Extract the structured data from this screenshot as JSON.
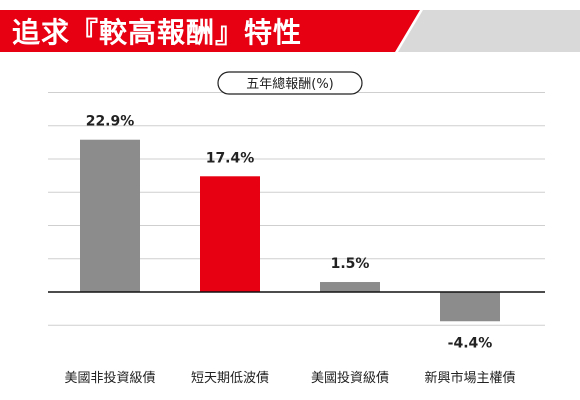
{
  "header": {
    "title": "追求『較高報酬』特性",
    "accent_color": "#e60012"
  },
  "chart_data": {
    "type": "bar",
    "title": "追求『較高報酬』特性",
    "subtitle": "五年總報酬(%)",
    "categories": [
      "美國非投資級債",
      "短天期低波債",
      "美國投資級債",
      "新興市場主權債"
    ],
    "values": [
      22.9,
      17.4,
      1.5,
      -4.4
    ],
    "value_labels": [
      "22.9%",
      "17.4%",
      "1.5%",
      "-4.4%"
    ],
    "colors": [
      "#8c8c8c",
      "#e60012",
      "#8c8c8c",
      "#8c8c8c"
    ],
    "ylim": [
      -10,
      30
    ],
    "gridlines": [
      -5,
      5,
      10,
      15,
      20,
      25,
      30
    ],
    "grid": true,
    "legend": "none",
    "xlabel": "",
    "ylabel": ""
  }
}
